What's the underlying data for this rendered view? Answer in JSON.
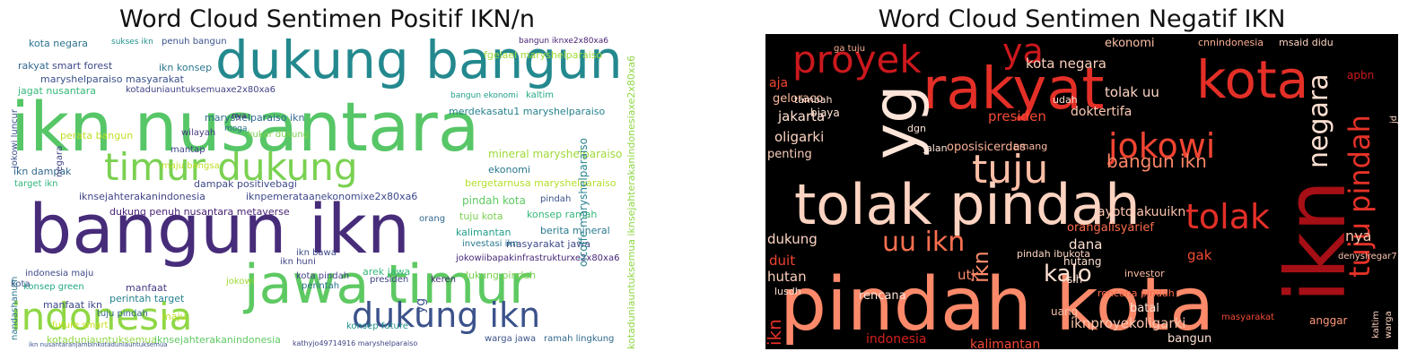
{
  "panels": [
    {
      "title": "Word Cloud Sentimen Positif IKN/n"
    },
    {
      "title": "Word Cloud Sentimen Negatif IKN"
    }
  ],
  "clouds": {
    "positive": {
      "background": "#ffffff",
      "words": [
        {
          "text": "ikn nusantara",
          "color": "#56c667"
        },
        {
          "text": "dukung bangun",
          "color": "#23898e"
        },
        {
          "text": "bangun ikn",
          "color": "#472c7a"
        },
        {
          "text": "jawa timur",
          "color": "#5ec962"
        },
        {
          "text": "timur dukung",
          "color": "#7ad151"
        },
        {
          "text": "indonesia",
          "color": "#8fd744"
        },
        {
          "text": "dukung ikn",
          "color": "#3b528b"
        },
        {
          "text": "kota negara",
          "color": "#2c728e"
        },
        {
          "text": "sukses ikn",
          "color": "#21918c"
        },
        {
          "text": "penuh bangun",
          "color": "#3b528b"
        },
        {
          "text": "bangun iknxe2x80xa6",
          "color": "#482475"
        },
        {
          "text": "fgelael maryshelparaiso",
          "color": "#a0da39"
        },
        {
          "text": "rakyat",
          "color": "#31688e"
        },
        {
          "text": "smart forest",
          "color": "#3e4989"
        },
        {
          "text": "ikn konsep",
          "color": "#2a788e"
        },
        {
          "text": "maryshelparaiso masyarakat",
          "color": "#3b528b"
        },
        {
          "text": "jagat nusantara",
          "color": "#35b779"
        },
        {
          "text": "kotaduniauntuksemuaxe2x80xa6",
          "color": "#414487"
        },
        {
          "text": "maryshelparaiso ikn",
          "color": "#31688e"
        },
        {
          "text": "bangun ekonomi",
          "color": "#1f9e89"
        },
        {
          "text": "kaltim",
          "color": "#22a884"
        },
        {
          "text": "merdekasatu1 maryshelparaiso",
          "color": "#26828e"
        },
        {
          "text": "wilayah",
          "color": "#443a83"
        },
        {
          "text": "kukar dukung",
          "color": "#7ad151"
        },
        {
          "text": "nya",
          "color": "#482878"
        },
        {
          "text": "moga",
          "color": "#2c728e"
        },
        {
          "text": "mantap",
          "color": "#414487"
        },
        {
          "text": "maju bangsa",
          "color": "#bddf26"
        },
        {
          "text": "dampak positivebagi",
          "color": "#3e4989"
        },
        {
          "text": "mineral maryshelparaiso",
          "color": "#a0da39"
        },
        {
          "text": "ekonomi",
          "color": "#2a788e"
        },
        {
          "text": "bergetarnusa maryshelparaiso",
          "color": "#b5de2b"
        },
        {
          "text": "ikn dampak",
          "color": "#31688e"
        },
        {
          "text": "target ikn",
          "color": "#2fb47c"
        },
        {
          "text": "iknsejahterakanindonesia",
          "color": "#414487"
        },
        {
          "text": "iknpemerataanekonomixe2x80xa6",
          "color": "#3e4989"
        },
        {
          "text": "pindah kota",
          "color": "#5ec962"
        },
        {
          "text": "pindah",
          "color": "#3b528b"
        },
        {
          "text": "dukung penuh nusantara metaverse",
          "color": "#482475"
        },
        {
          "text": "orang",
          "color": "#31688e"
        },
        {
          "text": "tuju kota",
          "color": "#7ad151"
        },
        {
          "text": "konsep ramah",
          "color": "#35b779"
        },
        {
          "text": "kalimantan",
          "color": "#1f9e89"
        },
        {
          "text": "berita mineral",
          "color": "#2a788e"
        },
        {
          "text": "masyarakat jawa",
          "color": "#3e4989"
        },
        {
          "text": "jokowiibapakinfrastrukturxe2x80xa6",
          "color": "#482878"
        },
        {
          "text": "indonesia maju",
          "color": "#3e4989"
        },
        {
          "text": "konsep green",
          "color": "#22a884"
        },
        {
          "text": "manfaat",
          "color": "#443a83"
        },
        {
          "text": "jokowi",
          "color": "#a0da39"
        },
        {
          "text": "perintah",
          "color": "#2c728e"
        },
        {
          "text": "kota pindah",
          "color": "#414487"
        },
        {
          "text": "dukung pindah",
          "color": "#7ad151"
        },
        {
          "text": "manfaat ikn",
          "color": "#3e4989"
        },
        {
          "text": "perintah target",
          "color": "#26828e"
        },
        {
          "text": "tuju pindah",
          "color": "#31688e"
        },
        {
          "text": "maju",
          "color": "#bddf26"
        },
        {
          "text": "future smart",
          "color": "#c8e020"
        },
        {
          "text": "kotaduniauntuksemua",
          "color": "#8fd744"
        },
        {
          "text": "iknsejahterakanindonesia",
          "color": "#5ec962"
        },
        {
          "text": "warga jawa",
          "color": "#3b528b"
        },
        {
          "text": "ramah lingkung",
          "color": "#31688e"
        },
        {
          "text": "kathyjo49714916 maryshelparaiso",
          "color": "#414487"
        },
        {
          "text": "ikn nusantaranjambinkotaduniauntuksemua",
          "color": "#3b528b"
        },
        {
          "text": "arek jawa",
          "color": "#35b779"
        },
        {
          "text": "ikn bawa",
          "color": "#3e4989"
        },
        {
          "text": "ikn huni",
          "color": "#414487"
        },
        {
          "text": "kota",
          "color": "#3b528b"
        },
        {
          "text": "investasi ikn",
          "color": "#2a788e"
        },
        {
          "text": "presiden",
          "color": "#414487"
        },
        {
          "text": "oicoffe maryshelparaiso",
          "color": "#26828e"
        },
        {
          "text": "kotaduniauntuksemua iknsejahterakanindonesiaxe2x80xa6",
          "color": "#8fd744"
        },
        {
          "text": "jokowi luncur",
          "color": "#3b528b"
        },
        {
          "text": "negara",
          "color": "#414487"
        },
        {
          "text": "nandashanum",
          "color": "#2a788e"
        },
        {
          "text": "perata bangun",
          "color": "#bddf26"
        },
        {
          "text": "yg",
          "color": "#3b528b"
        },
        {
          "text": "konsep future",
          "color": "#21918c"
        },
        {
          "text": "keren",
          "color": "#472c7a"
        }
      ]
    },
    "negative": {
      "background": "#000000",
      "words": [
        {
          "text": "pindah kota",
          "color": "#fc8a6a"
        },
        {
          "text": "tolak pindah",
          "color": "#fdd4c2"
        },
        {
          "text": "ikn",
          "color": "#a50f15"
        },
        {
          "text": "rakyat",
          "color": "#e32f27"
        },
        {
          "text": "yg",
          "color": "#fee5d9"
        },
        {
          "text": "kota",
          "color": "#e32f27"
        },
        {
          "text": "proyek",
          "color": "#cb181d"
        },
        {
          "text": "ya",
          "color": "#cb181d"
        },
        {
          "text": "tuju",
          "color": "#fcbea5"
        },
        {
          "text": "jokowi",
          "color": "#f14432"
        },
        {
          "text": "tuju pindah",
          "color": "#e53228"
        },
        {
          "text": "negara",
          "color": "#fee0d2"
        },
        {
          "text": "tolak",
          "color": "#e32f27"
        },
        {
          "text": "uu ikn",
          "color": "#fb7050"
        },
        {
          "text": "kota negara",
          "color": "#fdd0bc"
        },
        {
          "text": "ekonomi",
          "color": "#fcc1a8"
        },
        {
          "text": "cnnindonesia",
          "color": "#fcaf93"
        },
        {
          "text": "msaid didu",
          "color": "#fdd4c2"
        },
        {
          "text": "aja",
          "color": "#f14432"
        },
        {
          "text": "geloraco",
          "color": "#fcbba1"
        },
        {
          "text": "jakarta",
          "color": "#fee0d2"
        },
        {
          "text": "presiden",
          "color": "#f34a36"
        },
        {
          "text": "oligarki",
          "color": "#fdd4c2"
        },
        {
          "text": "jalan",
          "color": "#fee5d9"
        },
        {
          "text": "doktertifa",
          "color": "#fdc9b3"
        },
        {
          "text": "tolak uu",
          "color": "#fdd4c2"
        },
        {
          "text": "bangun ikn",
          "color": "#fc8767"
        },
        {
          "text": "oposisicerdas",
          "color": "#fcb296"
        },
        {
          "text": "penting",
          "color": "#fdd0bc"
        },
        {
          "text": "biaya",
          "color": "#fee0d2"
        },
        {
          "text": "apbn",
          "color": "#ce1a1e"
        },
        {
          "text": "dukung",
          "color": "#fdd4c2"
        },
        {
          "text": "hutan",
          "color": "#fdd0bc"
        },
        {
          "text": "rencana",
          "color": "#fee0d2"
        },
        {
          "text": "kalo",
          "color": "#fee0d2"
        },
        {
          "text": "utk",
          "color": "#fc8a6a"
        },
        {
          "text": "dana",
          "color": "#fee0d2"
        },
        {
          "text": "gak",
          "color": "#f34a36"
        },
        {
          "text": "hutang",
          "color": "#fee0d2"
        },
        {
          "text": "orangalisyarief",
          "color": "#fb6c4c"
        },
        {
          "text": "ayotolakuuikn",
          "color": "#fcc4ad"
        },
        {
          "text": "indonesia",
          "color": "#d42020"
        },
        {
          "text": "kalimantan",
          "color": "#f34a36"
        },
        {
          "text": "iknproyekoligarki",
          "color": "#fcc4ad"
        },
        {
          "text": "bangun",
          "color": "#fee0d2"
        },
        {
          "text": "nya",
          "color": "#fcc4ad"
        },
        {
          "text": "tambah",
          "color": "#fee0d2"
        },
        {
          "text": "lusdh",
          "color": "#fee0d2"
        },
        {
          "text": "dgn",
          "color": "#fee5d9"
        },
        {
          "text": "ga tuju",
          "color": "#fcaf93"
        },
        {
          "text": "emang",
          "color": "#fcbba1"
        },
        {
          "text": "sih",
          "color": "#fee0d2"
        },
        {
          "text": "batal",
          "color": "#fee0d2"
        },
        {
          "text": "uang",
          "color": "#fcbea5"
        },
        {
          "text": "anggar",
          "color": "#fc9879"
        },
        {
          "text": "duit",
          "color": "#f14432"
        },
        {
          "text": "rencana pindah",
          "color": "#fb6c4c"
        },
        {
          "text": "pindah ibukota",
          "color": "#fdd4c2"
        },
        {
          "text": "masyarakat",
          "color": "#f34a36"
        },
        {
          "text": "denysiregar7",
          "color": "#fcc4ad"
        },
        {
          "text": "udah",
          "color": "#fee0d2"
        },
        {
          "text": "kaltim",
          "color": "#fdd0bc"
        },
        {
          "text": "warga",
          "color": "#fdd4c2"
        },
        {
          "text": "jd",
          "color": "#fdd4c2"
        },
        {
          "text": "investor",
          "color": "#fcbba1"
        },
        {
          "text": "ikn",
          "color": "#fc8a6a"
        },
        {
          "text": "ikn",
          "color": "#e32f27"
        }
      ]
    }
  }
}
